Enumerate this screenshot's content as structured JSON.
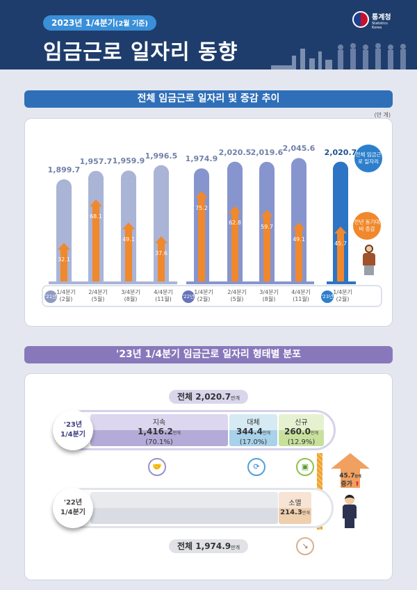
{
  "header": {
    "badge": "2023년 1/4분기",
    "badge_sub": "(2월 기준)",
    "title": "임금근로 일자리 동향",
    "logo_kr": "통계청",
    "logo_en": "Statistics Korea"
  },
  "section1": {
    "title": "전체 임금근로 일자리 및 증감 추이",
    "unit": "(만 개)",
    "callout_total": "전체 임금근로 일자리",
    "callout_change": "전년 동기대비 증감"
  },
  "section2": {
    "title": "'23년 1/4분기 임금근로 일자리 형태별 분포"
  },
  "chart_data": {
    "type": "bar",
    "unit": "(만 개)",
    "years": [
      {
        "label": "'21년",
        "color": "#8d9ac3"
      },
      {
        "label": "'22년",
        "color": "#6673bd"
      },
      {
        "label": "'23년",
        "color": "#2d7fcc"
      }
    ],
    "categories": [
      {
        "year": "'21년",
        "q": "1/4분기",
        "m": "(2월)"
      },
      {
        "year": "'21년",
        "q": "2/4분기",
        "m": "(5월)"
      },
      {
        "year": "'21년",
        "q": "3/4분기",
        "m": "(8월)"
      },
      {
        "year": "'21년",
        "q": "4/4분기",
        "m": "(11월)"
      },
      {
        "year": "'22년",
        "q": "1/4분기",
        "m": "(2월)"
      },
      {
        "year": "'22년",
        "q": "2/4분기",
        "m": "(5월)"
      },
      {
        "year": "'22년",
        "q": "3/4분기",
        "m": "(8월)"
      },
      {
        "year": "'22년",
        "q": "4/4분기",
        "m": "(11월)"
      },
      {
        "year": "'23년",
        "q": "1/4분기",
        "m": "(2월)"
      }
    ],
    "series": [
      {
        "name": "전체 임금근로 일자리",
        "values": [
          "1,899.7",
          "1,957.7",
          "1,959.9",
          "1,996.5",
          "1,974.9",
          "2,020.5",
          "2,019.6",
          "2,045.6",
          "2,020.7"
        ]
      },
      {
        "name": "전년 동기대비 증감",
        "values": [
          "32.1",
          "68.1",
          "49.1",
          "37.6",
          "75.2",
          "62.8",
          "59.7",
          "49.1",
          "45.7"
        ]
      }
    ],
    "colors": {
      "bar21": "#a9b4d6",
      "bar22": "#8795cf",
      "bar23": "#2d74c4",
      "arrow": "#f0882c"
    }
  },
  "distribution": {
    "total_23_label": "전체",
    "total_23": "2,020.7",
    "total_22_label": "전체",
    "total_22": "1,974.9",
    "unit": "만개",
    "row23": "'23년",
    "row23_q": "1/4분기",
    "row22": "'22년",
    "row22_q": "1/4분기",
    "segments": [
      {
        "name": "지속",
        "value": "1,416.2",
        "pct": "(70.1%)"
      },
      {
        "name": "대체",
        "value": "344.4",
        "pct": "(17.0%)"
      },
      {
        "name": "신규",
        "value": "260.0",
        "pct": "(12.9%)"
      }
    ],
    "extinct": {
      "name": "소멸",
      "value": "214.3"
    },
    "increase": {
      "value": "45.7",
      "label": "증가"
    }
  }
}
